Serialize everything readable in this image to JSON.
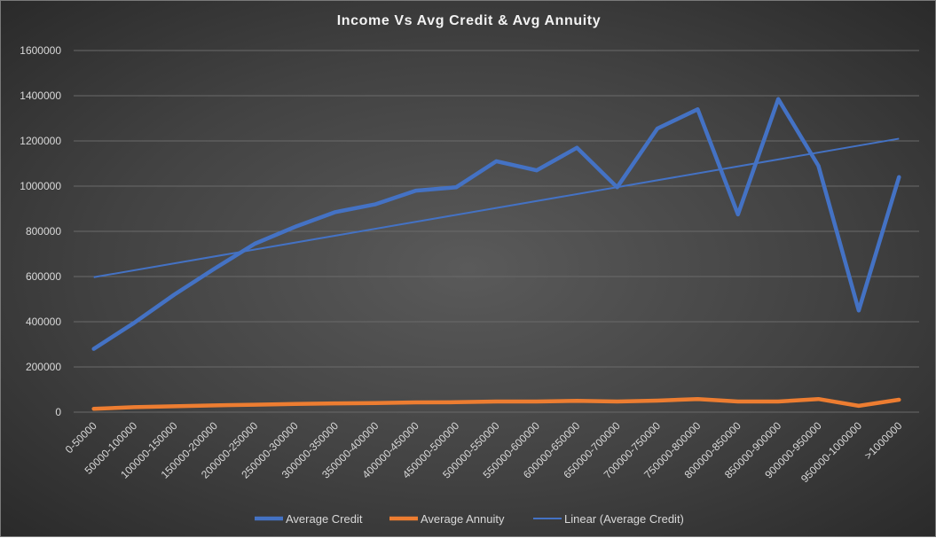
{
  "chart_data": {
    "type": "line",
    "title": "Income Vs Avg Credit & Avg Annuity",
    "xlabel": "",
    "ylabel": "",
    "ylim": [
      0,
      1600000
    ],
    "yticks": [
      "0",
      "200000",
      "400000",
      "600000",
      "800000",
      "1000000",
      "1200000",
      "1400000",
      "1600000"
    ],
    "categories": [
      "0-50000",
      "50000-100000",
      "100000-150000",
      "150000-200000",
      "200000-250000",
      "250000-300000",
      "300000-350000",
      "350000-400000",
      "400000-450000",
      "450000-500000",
      "500000-550000",
      "550000-600000",
      "600000-650000",
      "650000-700000",
      "700000-750000",
      "750000-800000",
      "800000-850000",
      "850000-900000",
      "900000-950000",
      "950000-1000000",
      ">1000000"
    ],
    "series": [
      {
        "name": "Average Credit",
        "color": "#4472c4",
        "values": [
          280000,
          395000,
          520000,
          635000,
          745000,
          820000,
          885000,
          920000,
          980000,
          995000,
          1110000,
          1070000,
          1170000,
          995000,
          1255000,
          1340000,
          875000,
          1385000,
          1090000,
          450000,
          1040000
        ]
      },
      {
        "name": "Average Annuity",
        "color": "#ed7d31",
        "values": [
          15000,
          22000,
          26000,
          30000,
          33000,
          36000,
          39000,
          40000,
          43000,
          44000,
          47000,
          47000,
          50000,
          47000,
          51000,
          58000,
          47000,
          47000,
          58000,
          28000,
          55000
        ]
      }
    ],
    "trendline": {
      "name": "Linear (Average Credit)",
      "color": "#4472c4",
      "start": 597000,
      "end": 1210000
    },
    "grid": true,
    "legend": "bottom"
  }
}
